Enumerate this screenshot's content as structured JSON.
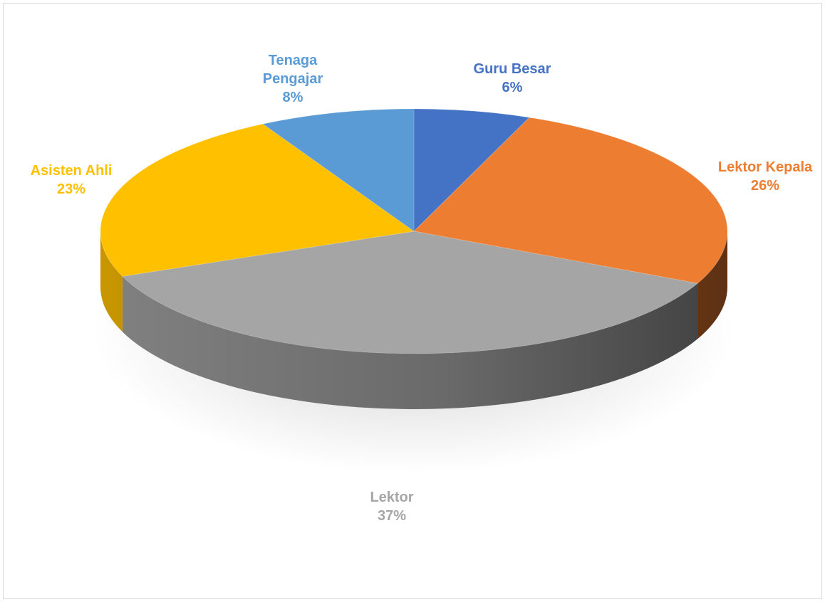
{
  "chart_data": {
    "type": "pie",
    "style": "3d",
    "title": "",
    "slices": [
      {
        "label": "Guru Besar",
        "percent_label": "6%",
        "value": 6,
        "color": "#4472C4"
      },
      {
        "label": "Lektor Kepala",
        "percent_label": "26%",
        "value": 26,
        "color": "#ED7D31"
      },
      {
        "label": "Lektor",
        "percent_label": "37%",
        "value": 37,
        "color": "#A5A5A5"
      },
      {
        "label": "Asisten Ahli",
        "percent_label": "23%",
        "value": 23,
        "color": "#FFC000"
      },
      {
        "label": "Tenaga Pengajar",
        "percent_label": "8%",
        "value": 8,
        "color": "#5B9BD5"
      }
    ],
    "legend": "none",
    "data_labels": "outside, category name and percentage"
  }
}
